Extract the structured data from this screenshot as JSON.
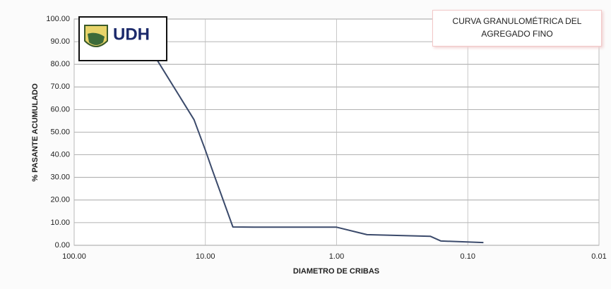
{
  "chart_data": {
    "type": "line",
    "title": "CURVA GRANULOMÉTRICA DEL AGREGADO FINO",
    "logo_text": "UDH",
    "x_label": "DIAMETRO DE  CRIBAS",
    "y_label": "% PASANTE ACUMULADO",
    "xlog": true,
    "xlim": [
      100,
      0.01
    ],
    "xticks": [
      {
        "value": 100,
        "label": "100.00"
      },
      {
        "value": 10,
        "label": "10.00"
      },
      {
        "value": 1,
        "label": "1.00"
      },
      {
        "value": 0.1,
        "label": "0.10"
      },
      {
        "value": 0.01,
        "label": "0.01"
      }
    ],
    "ylim": [
      0,
      100
    ],
    "yticks": [
      {
        "value": 0,
        "label": "0.00"
      },
      {
        "value": 10,
        "label": "10.00"
      },
      {
        "value": 20,
        "label": "20.00"
      },
      {
        "value": 30,
        "label": "30.00"
      },
      {
        "value": 40,
        "label": "40.00"
      },
      {
        "value": 50,
        "label": "50.00"
      },
      {
        "value": 60,
        "label": "60.00"
      },
      {
        "value": 70,
        "label": "70.00"
      },
      {
        "value": 80,
        "label": "80.00"
      },
      {
        "value": 90,
        "label": "90.00"
      },
      {
        "value": 100,
        "label": "100.00"
      }
    ],
    "grid": true,
    "series": [
      {
        "color": "#3b4a6b",
        "x": [
          23.4,
          12.2,
          10,
          8.9,
          6.17,
          4.26,
          1.0,
          0.587,
          0.193,
          0.16,
          0.076
        ],
        "values": [
          82,
          55.5,
          42,
          33.6,
          8.1,
          8,
          8,
          4.7,
          4,
          1.9,
          1.2
        ]
      }
    ]
  }
}
